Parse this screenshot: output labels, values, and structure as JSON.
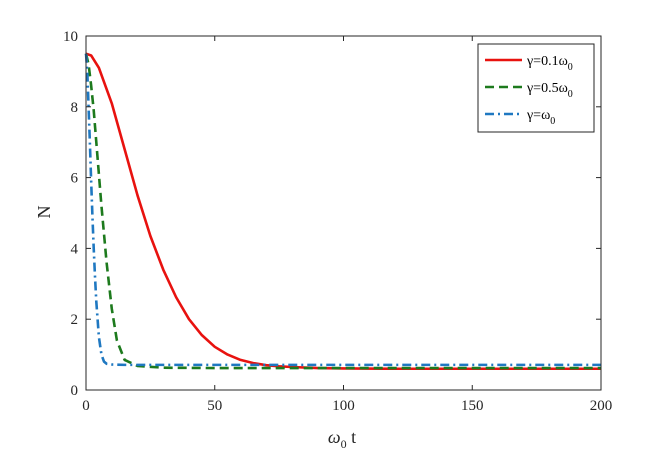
{
  "chart_data": {
    "type": "line",
    "xlabel": "ω",
    "xlabel_sub": "0",
    "xlabel_suffix": " t",
    "ylabel": "N",
    "xlim": [
      0,
      200
    ],
    "ylim": [
      0,
      10
    ],
    "xticks": [
      0,
      50,
      100,
      150,
      200
    ],
    "yticks": [
      0,
      2,
      4,
      6,
      8,
      10
    ],
    "grid": false,
    "legend": "top-right",
    "series": [
      {
        "name": "γ=0.1ω",
        "name_sub": "0",
        "color": "#e8120f",
        "dash": "solid",
        "x": [
          0,
          2,
          5,
          10,
          15,
          20,
          25,
          30,
          35,
          40,
          45,
          50,
          55,
          60,
          65,
          70,
          75,
          80,
          90,
          100,
          120,
          150,
          200
        ],
        "y": [
          9.5,
          9.45,
          9.1,
          8.1,
          6.8,
          5.5,
          4.35,
          3.4,
          2.62,
          2.0,
          1.55,
          1.22,
          1.0,
          0.85,
          0.76,
          0.7,
          0.67,
          0.65,
          0.62,
          0.61,
          0.6,
          0.6,
          0.6
        ]
      },
      {
        "name": "γ=0.5ω",
        "name_sub": "0",
        "color": "#1d7a1d",
        "dash": "dashed",
        "x": [
          0,
          1,
          2,
          3,
          4,
          5,
          6,
          8,
          10,
          12,
          15,
          20,
          30,
          50,
          100,
          150,
          200
        ],
        "y": [
          9.5,
          9.2,
          8.6,
          7.9,
          7.0,
          6.1,
          5.2,
          3.6,
          2.3,
          1.4,
          0.85,
          0.68,
          0.63,
          0.62,
          0.62,
          0.62,
          0.62
        ]
      },
      {
        "name": "γ=ω",
        "name_sub": "0",
        "color": "#1f78c1",
        "dash": "dashdot",
        "x": [
          0,
          0.5,
          1,
          1.5,
          2,
          2.5,
          3,
          3.5,
          4,
          5,
          6,
          7,
          8,
          10,
          15,
          20,
          50,
          100,
          150,
          200
        ],
        "y": [
          9.5,
          9.0,
          8.0,
          7.0,
          5.9,
          4.9,
          4.0,
          3.2,
          2.5,
          1.5,
          1.0,
          0.8,
          0.74,
          0.72,
          0.71,
          0.71,
          0.71,
          0.71,
          0.71,
          0.71
        ]
      }
    ]
  }
}
